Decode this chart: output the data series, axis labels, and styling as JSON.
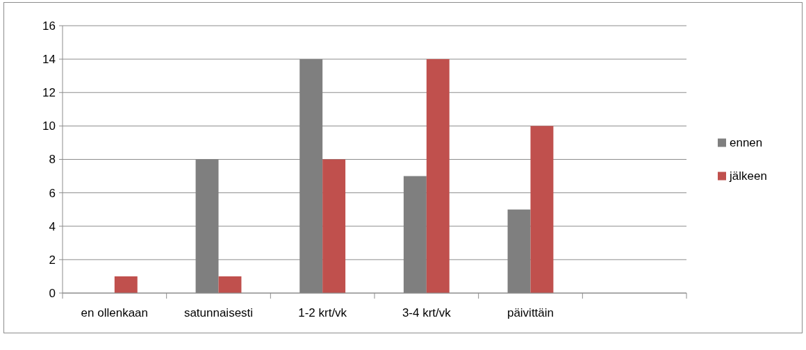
{
  "chart_data": {
    "type": "bar",
    "categories": [
      "en ollenkaan",
      "satunnaisesti",
      "1-2 krt/vk",
      "3-4 krt/vk",
      "päivittäin",
      null
    ],
    "series": [
      {
        "name": "ennen",
        "color": "#7f7f7f",
        "values": [
          0,
          8,
          14,
          7,
          5,
          null
        ]
      },
      {
        "name": "jälkeen",
        "color": "#c0504d",
        "values": [
          1,
          1,
          8,
          14,
          10,
          null
        ]
      }
    ],
    "ylim": [
      0,
      16
    ],
    "yticks": [
      0,
      2,
      4,
      6,
      8,
      10,
      12,
      14,
      16
    ],
    "grid": "y",
    "legend": "right"
  }
}
